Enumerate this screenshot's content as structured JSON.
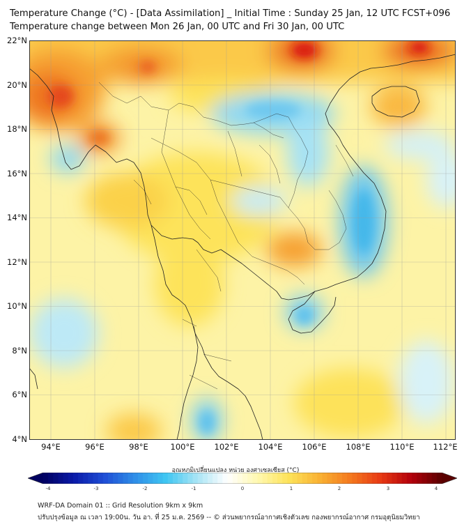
{
  "header": {
    "title_line1": "Temperature Change (°C) - [Data Assimilation] _ Initial Time : Sunday 25 Jan, 12 UTC FCST+096",
    "title_line2": "Temperature change between Mon 26 Jan, 00 UTC and Fri 30 Jan, 00 UTC"
  },
  "map": {
    "lat_labels": [
      "22°N",
      "20°N",
      "18°N",
      "16°N",
      "14°N",
      "12°N",
      "10°N",
      "8°N",
      "6°N",
      "4°N"
    ],
    "lon_labels": [
      "94°E",
      "96°E",
      "98°E",
      "100°E",
      "102°E",
      "104°E",
      "106°E",
      "108°E",
      "110°E",
      "112°E"
    ],
    "lat_range": [
      4,
      22
    ],
    "lon_range": [
      93,
      112.5
    ],
    "grid": true
  },
  "colorbar": {
    "title": "อุณหภูมิเปลี่ยนแปลง หน่วย องศาเซลเซียส (°C)",
    "ticks": [
      "-4",
      "-3",
      "-2",
      "-1",
      "0",
      "1",
      "2",
      "3",
      "4"
    ],
    "range": [
      -4,
      4
    ],
    "colors": [
      "#000060",
      "#0a1aa8",
      "#1f4fd6",
      "#2f8fe8",
      "#3fc6f2",
      "#a8e4f5",
      "#ffffff",
      "#fff8b0",
      "#fde35a",
      "#f9b233",
      "#f47a1f",
      "#e83a14",
      "#b3000b",
      "#5a0000"
    ]
  },
  "footer": {
    "line1": "WRF-DA Domain 01 :: Grid Resolution 9km x 9km",
    "line2": "ปรับปรุงข้อมูล ณ เวลา 19:00น. วัน อา. ที่ 25 ม.ค. 2569 -- © ส่วนพยากรณ์อากาศเชิงตัวเลข กองพยากรณ์อากาศ กรมอุตุนิยมวิทยา"
  }
}
